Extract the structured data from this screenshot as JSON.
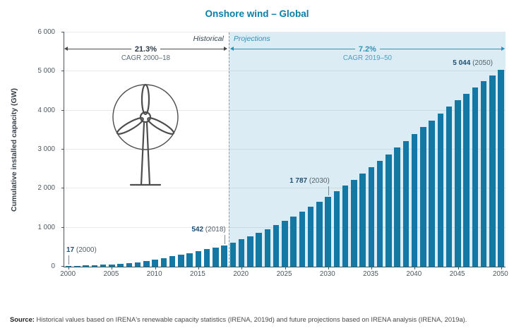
{
  "title": "Onshore wind – Global",
  "y_axis_label": "Cumulative installed capacity (GW)",
  "annotations": {
    "historical_label": "Historical",
    "projections_label": "Projections",
    "cagr_hist_pct": "21.3%",
    "cagr_hist_caption": "CAGR 2000–18",
    "cagr_proj_pct": "7.2%",
    "cagr_proj_caption": "CAGR 2019–50"
  },
  "source": {
    "label": "Source:",
    "text": " Historical values based on IRENA's renewable capacity statistics (IRENA, 2019d) and future projections based on IRENA analysis (IRENA, 2019a)."
  },
  "colors": {
    "bar": "#1478a4",
    "title": "#0b7ea8",
    "projection_background": "#dcecf5",
    "callout_number": "#1c4f72",
    "proj_accent": "#2d93b5"
  },
  "chart_data": {
    "type": "bar",
    "title": "Onshore wind – Global",
    "ylabel": "Cumulative installed capacity (GW)",
    "ylim": [
      0,
      6000
    ],
    "ytick_values": [
      0,
      1000,
      2000,
      3000,
      4000,
      5000,
      6000
    ],
    "ytick_labels": [
      "0",
      "1 000",
      "2 000",
      "3 000",
      "4 000",
      "5 000",
      "6 000"
    ],
    "xticks": [
      2000,
      2005,
      2010,
      2015,
      2020,
      2025,
      2030,
      2035,
      2040,
      2045,
      2050
    ],
    "historical_end_year": 2018,
    "x": [
      2000,
      2001,
      2002,
      2003,
      2004,
      2005,
      2006,
      2007,
      2008,
      2009,
      2010,
      2011,
      2012,
      2013,
      2014,
      2015,
      2016,
      2017,
      2018,
      2019,
      2020,
      2021,
      2022,
      2023,
      2024,
      2025,
      2026,
      2027,
      2028,
      2029,
      2030,
      2031,
      2032,
      2033,
      2034,
      2035,
      2036,
      2037,
      2038,
      2039,
      2040,
      2041,
      2042,
      2043,
      2044,
      2045,
      2046,
      2047,
      2048,
      2049,
      2050
    ],
    "values": [
      17,
      24,
      31,
      39,
      47,
      58,
      73,
      91,
      115,
      150,
      178,
      215,
      267,
      300,
      349,
      403,
      451,
      495,
      542,
      620,
      700,
      780,
      865,
      955,
      1060,
      1170,
      1285,
      1405,
      1530,
      1655,
      1787,
      1925,
      2070,
      2220,
      2380,
      2545,
      2710,
      2880,
      3050,
      3225,
      3400,
      3575,
      3750,
      3925,
      4100,
      4270,
      4435,
      4595,
      4750,
      4900,
      5044
    ],
    "callouts": [
      {
        "value": "17",
        "suffix": "(2000)",
        "index": 0,
        "gw": 17,
        "align": "left-edge",
        "line": true
      },
      {
        "value": "542",
        "suffix": "(2018)",
        "index": 18,
        "gw": 542,
        "align": "end-at-bar",
        "line": true
      },
      {
        "value": "1 787",
        "suffix": "(2030)",
        "index": 30,
        "gw": 1787,
        "align": "end-at-bar",
        "line": true
      },
      {
        "value": "5 044",
        "suffix": "(2050)",
        "index": 50,
        "gw": 5044,
        "align": "right-edge",
        "line": false
      }
    ]
  }
}
